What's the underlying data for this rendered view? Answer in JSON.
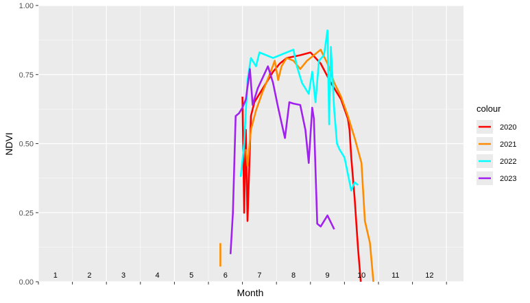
{
  "chart_data": {
    "type": "line",
    "title": "",
    "xlabel": "Month",
    "ylabel": "NDVI",
    "xlim": [
      0,
      12.5
    ],
    "ylim": [
      0,
      1
    ],
    "yticks": [
      "0.00",
      "0.25",
      "0.50",
      "0.75",
      "1.00"
    ],
    "ytick_values": [
      0,
      0.25,
      0.5,
      0.75,
      1
    ],
    "month_labels": [
      "1",
      "2",
      "3",
      "4",
      "5",
      "6",
      "7",
      "8",
      "9",
      "10",
      "11",
      "12"
    ],
    "month_label_y": 0.015,
    "grid": true,
    "legend": {
      "title": "colour",
      "placement": "right"
    },
    "series": [
      {
        "name": "2020",
        "color": "#ff0000",
        "segments": [
          [
            [
              6.0,
              0.67
            ],
            [
              6.02,
              0.5
            ]
          ],
          [
            [
              6.02,
              0.5
            ],
            [
              6.05,
              0.25
            ],
            [
              6.1,
              0.55
            ],
            [
              6.15,
              0.22
            ],
            [
              6.2,
              0.41
            ],
            [
              6.25,
              0.6
            ],
            [
              6.35,
              0.65
            ],
            [
              6.5,
              0.68
            ],
            [
              6.7,
              0.72
            ],
            [
              6.9,
              0.76
            ],
            [
              7.1,
              0.79
            ],
            [
              7.3,
              0.81
            ],
            [
              7.5,
              0.815
            ],
            [
              7.7,
              0.82
            ],
            [
              8.0,
              0.83
            ],
            [
              8.3,
              0.79
            ],
            [
              8.6,
              0.72
            ],
            [
              8.9,
              0.66
            ],
            [
              9.1,
              0.59
            ],
            [
              9.15,
              0.55
            ],
            [
              9.2,
              0.45
            ],
            [
              9.3,
              0.3
            ],
            [
              9.4,
              0.12
            ],
            [
              9.48,
              0.0
            ]
          ]
        ]
      },
      {
        "name": "2021",
        "color": "#ff8c00",
        "segments": [
          [
            [
              5.35,
              0.14
            ],
            [
              5.35,
              0.055
            ]
          ],
          [
            [
              6.1,
              0.48
            ],
            [
              6.15,
              0.42
            ],
            [
              6.25,
              0.55
            ],
            [
              6.4,
              0.62
            ],
            [
              6.6,
              0.69
            ],
            [
              6.8,
              0.75
            ],
            [
              6.95,
              0.8
            ],
            [
              7.05,
              0.73
            ],
            [
              7.15,
              0.78
            ],
            [
              7.3,
              0.81
            ],
            [
              7.5,
              0.8
            ],
            [
              7.7,
              0.77
            ],
            [
              7.9,
              0.8
            ],
            [
              8.1,
              0.82
            ],
            [
              8.3,
              0.84
            ],
            [
              8.5,
              0.79
            ],
            [
              8.7,
              0.72
            ],
            [
              8.9,
              0.67
            ],
            [
              9.1,
              0.6
            ],
            [
              9.3,
              0.52
            ],
            [
              9.5,
              0.43
            ],
            [
              9.6,
              0.22
            ],
            [
              9.75,
              0.14
            ],
            [
              9.85,
              0.0
            ]
          ]
        ]
      },
      {
        "name": "2022",
        "color": "#00ffff",
        "segments": [
          [
            [
              5.95,
              0.38
            ],
            [
              6.05,
              0.5
            ],
            [
              6.15,
              0.73
            ],
            [
              6.25,
              0.81
            ],
            [
              6.4,
              0.78
            ],
            [
              6.5,
              0.83
            ],
            [
              6.7,
              0.82
            ],
            [
              6.9,
              0.81
            ],
            [
              7.1,
              0.82
            ],
            [
              7.3,
              0.83
            ],
            [
              7.5,
              0.84
            ],
            [
              7.6,
              0.78
            ],
            [
              7.75,
              0.72
            ],
            [
              7.95,
              0.68
            ],
            [
              8.05,
              0.76
            ],
            [
              8.15,
              0.65
            ],
            [
              8.25,
              0.8
            ],
            [
              8.4,
              0.82
            ],
            [
              8.5,
              0.91
            ],
            [
              8.55,
              0.57
            ],
            [
              8.6,
              0.85
            ],
            [
              8.7,
              0.62
            ],
            [
              8.78,
              0.5
            ],
            [
              8.85,
              0.48
            ],
            [
              9.0,
              0.45
            ],
            [
              9.1,
              0.39
            ],
            [
              9.2,
              0.33
            ],
            [
              9.3,
              0.36
            ],
            [
              9.4,
              0.35
            ]
          ]
        ]
      },
      {
        "name": "2023",
        "color": "#a020f0",
        "segments": [
          [
            [
              5.65,
              0.1
            ],
            [
              5.72,
              0.25
            ],
            [
              5.8,
              0.6
            ],
            [
              5.9,
              0.61
            ],
            [
              6.0,
              0.63
            ],
            [
              6.1,
              0.66
            ],
            [
              6.22,
              0.77
            ],
            [
              6.3,
              0.64
            ],
            [
              6.45,
              0.7
            ],
            [
              6.6,
              0.74
            ],
            [
              6.75,
              0.78
            ],
            [
              6.9,
              0.72
            ],
            [
              7.05,
              0.63
            ],
            [
              7.25,
              0.52
            ],
            [
              7.38,
              0.65
            ],
            [
              7.5,
              0.645
            ],
            [
              7.7,
              0.64
            ],
            [
              7.85,
              0.55
            ],
            [
              7.95,
              0.43
            ],
            [
              8.05,
              0.63
            ],
            [
              8.1,
              0.59
            ],
            [
              8.2,
              0.21
            ],
            [
              8.3,
              0.2
            ],
            [
              8.5,
              0.24
            ],
            [
              8.7,
              0.19
            ]
          ]
        ]
      }
    ]
  }
}
